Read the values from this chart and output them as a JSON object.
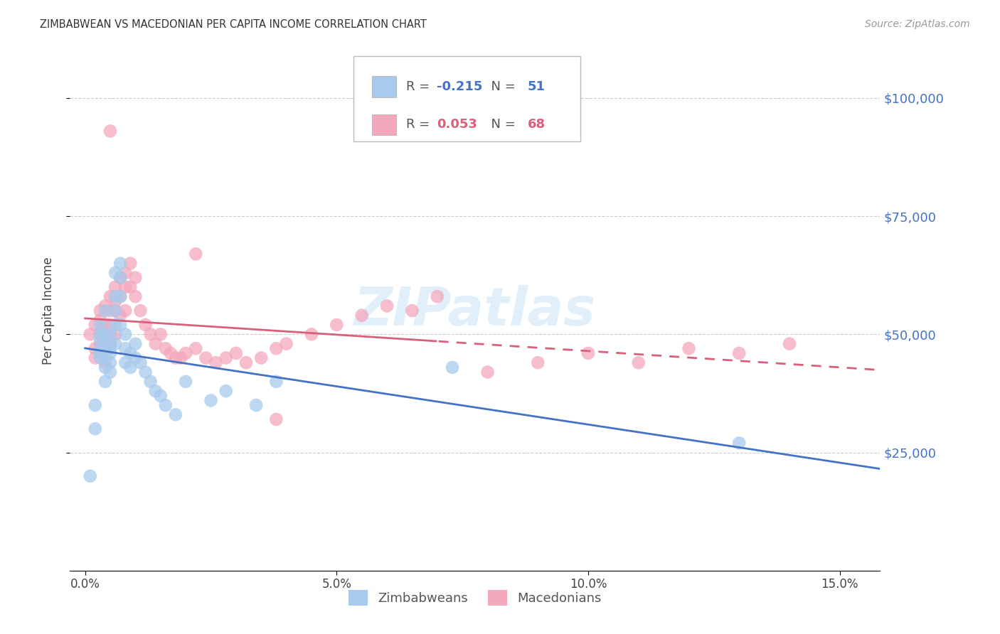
{
  "title": "ZIMBABWEAN VS MACEDONIAN PER CAPITA INCOME CORRELATION CHART",
  "source": "Source: ZipAtlas.com",
  "ylabel": "Per Capita Income",
  "xlabel_ticks": [
    "0.0%",
    "5.0%",
    "10.0%",
    "15.0%"
  ],
  "xlabel_vals": [
    0.0,
    0.05,
    0.1,
    0.15
  ],
  "ytick_labels": [
    "$25,000",
    "$50,000",
    "$75,000",
    "$100,000"
  ],
  "ytick_vals": [
    25000,
    50000,
    75000,
    100000
  ],
  "ylim": [
    0,
    110000
  ],
  "xlim": [
    -0.003,
    0.158
  ],
  "watermark": "ZIPatlas",
  "legend_blue_r": "-0.215",
  "legend_blue_n": "51",
  "legend_pink_r": "0.053",
  "legend_pink_n": "68",
  "blue_color": "#A8CAED",
  "pink_color": "#F4A8BC",
  "blue_line_color": "#4472C4",
  "pink_line_color": "#D9607A",
  "grid_color": "#cccccc",
  "zimbabwean_x": [
    0.001,
    0.002,
    0.002,
    0.003,
    0.003,
    0.003,
    0.003,
    0.003,
    0.003,
    0.004,
    0.004,
    0.004,
    0.004,
    0.004,
    0.004,
    0.005,
    0.005,
    0.005,
    0.005,
    0.005,
    0.005,
    0.006,
    0.006,
    0.006,
    0.006,
    0.006,
    0.007,
    0.007,
    0.007,
    0.007,
    0.008,
    0.008,
    0.008,
    0.009,
    0.009,
    0.01,
    0.01,
    0.011,
    0.012,
    0.013,
    0.014,
    0.015,
    0.016,
    0.018,
    0.02,
    0.025,
    0.028,
    0.034,
    0.038,
    0.073,
    0.13
  ],
  "zimbabwean_y": [
    20000,
    30000,
    35000,
    47000,
    46000,
    49000,
    52000,
    45000,
    50000,
    50000,
    48000,
    45000,
    43000,
    40000,
    55000,
    50000,
    48000,
    47000,
    46000,
    44000,
    42000,
    63000,
    58000,
    55000,
    52000,
    48000,
    65000,
    62000,
    58000,
    52000,
    50000,
    47000,
    44000,
    46000,
    43000,
    48000,
    45000,
    44000,
    42000,
    40000,
    38000,
    37000,
    35000,
    33000,
    40000,
    36000,
    38000,
    35000,
    40000,
    43000,
    27000
  ],
  "macedonian_x": [
    0.001,
    0.002,
    0.002,
    0.002,
    0.003,
    0.003,
    0.003,
    0.003,
    0.003,
    0.004,
    0.004,
    0.004,
    0.004,
    0.004,
    0.005,
    0.005,
    0.005,
    0.005,
    0.005,
    0.006,
    0.006,
    0.006,
    0.006,
    0.007,
    0.007,
    0.007,
    0.008,
    0.008,
    0.008,
    0.009,
    0.009,
    0.01,
    0.01,
    0.011,
    0.012,
    0.013,
    0.014,
    0.015,
    0.016,
    0.017,
    0.018,
    0.019,
    0.02,
    0.022,
    0.024,
    0.026,
    0.028,
    0.03,
    0.032,
    0.035,
    0.038,
    0.04,
    0.045,
    0.05,
    0.055,
    0.06,
    0.065,
    0.07,
    0.08,
    0.09,
    0.1,
    0.11,
    0.12,
    0.13,
    0.14,
    0.005,
    0.022,
    0.038
  ],
  "macedonian_y": [
    50000,
    52000,
    47000,
    45000,
    50000,
    48000,
    46000,
    53000,
    55000,
    56000,
    52000,
    50000,
    47000,
    44000,
    58000,
    55000,
    52000,
    50000,
    48000,
    60000,
    57000,
    55000,
    50000,
    62000,
    58000,
    54000,
    63000,
    60000,
    55000,
    65000,
    60000,
    62000,
    58000,
    55000,
    52000,
    50000,
    48000,
    50000,
    47000,
    46000,
    45000,
    45000,
    46000,
    47000,
    45000,
    44000,
    45000,
    46000,
    44000,
    45000,
    47000,
    48000,
    50000,
    52000,
    54000,
    56000,
    55000,
    58000,
    42000,
    44000,
    46000,
    44000,
    47000,
    46000,
    48000,
    93000,
    67000,
    32000
  ]
}
